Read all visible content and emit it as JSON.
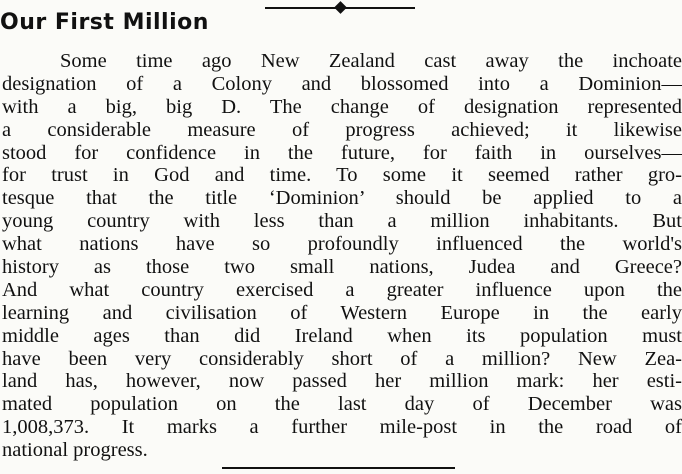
{
  "article": {
    "title": "Our First Million",
    "lines": [
      "Some time ago New Zealand cast away the inchoate",
      "designation of a Colony and blossomed into a Dominion—",
      "with a big, big D. The change of designation represented",
      "a considerable measure of progress achieved; it likewise",
      "stood for confidence in the future, for faith in ourselves—",
      "for trust in God and time. To some it seemed rather gro-",
      "tesque that the title ‘Dominion’ should be applied to a",
      "young country with less than a million inhabitants. But",
      "what nations have so profoundly influenced the world's",
      "history as those two small nations, Judea and Greece?",
      "And what country exercised a greater influence upon the",
      "learning and civilisation of Western Europe in the early",
      "middle ages than did Ireland when its population must",
      "have been very considerably short of a million? New Zea-",
      "land has, however, now passed her million mark: her esti-",
      "mated population on the last day of December was",
      "1,008,373. It marks a further mile-post in the road of",
      "national progress."
    ]
  }
}
